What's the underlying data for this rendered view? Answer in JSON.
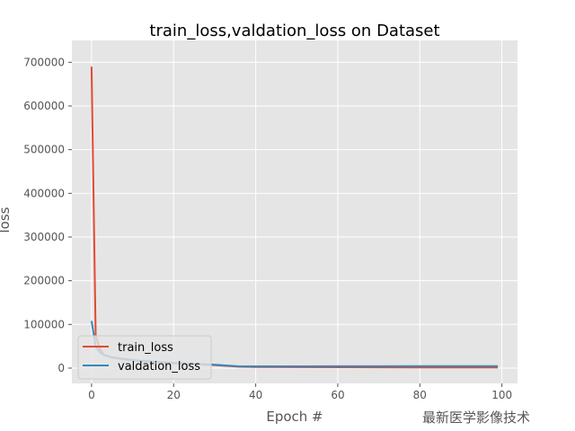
{
  "chart_data": {
    "type": "line",
    "title": "train_loss,valdation_loss on Dataset",
    "xlabel": "Epoch #",
    "ylabel": "loss",
    "xlim": [
      -4.8,
      103.8
    ],
    "ylim": [
      -35000,
      750000
    ],
    "xticks": [
      0,
      20,
      40,
      60,
      80,
      100
    ],
    "yticks": [
      0,
      100000,
      200000,
      300000,
      400000,
      500000,
      600000,
      700000
    ],
    "grid": true,
    "legend_position": "lower-left",
    "background": "#e5e5e5",
    "series": [
      {
        "name": "train_loss",
        "color": "#e24a33",
        "x": [
          0,
          1,
          2,
          3,
          5,
          8,
          12,
          20,
          30,
          36,
          40,
          50,
          60,
          70,
          80,
          90,
          99
        ],
        "y": [
          690000,
          75000,
          45000,
          30000,
          24000,
          20000,
          16000,
          11000,
          7000,
          3000,
          2500,
          2200,
          2000,
          1800,
          1600,
          1500,
          1500
        ]
      },
      {
        "name": "valdation_loss",
        "color": "#348abd",
        "x": [
          0,
          1,
          2,
          3,
          5,
          8,
          12,
          20,
          30,
          36,
          40,
          50,
          60,
          70,
          80,
          90,
          99
        ],
        "y": [
          108000,
          50000,
          36000,
          30000,
          25000,
          21000,
          17000,
          12000,
          8000,
          4000,
          4000,
          4000,
          4200,
          4300,
          4400,
          4500,
          4500
        ]
      }
    ]
  },
  "watermark": "最新医学影像技术"
}
